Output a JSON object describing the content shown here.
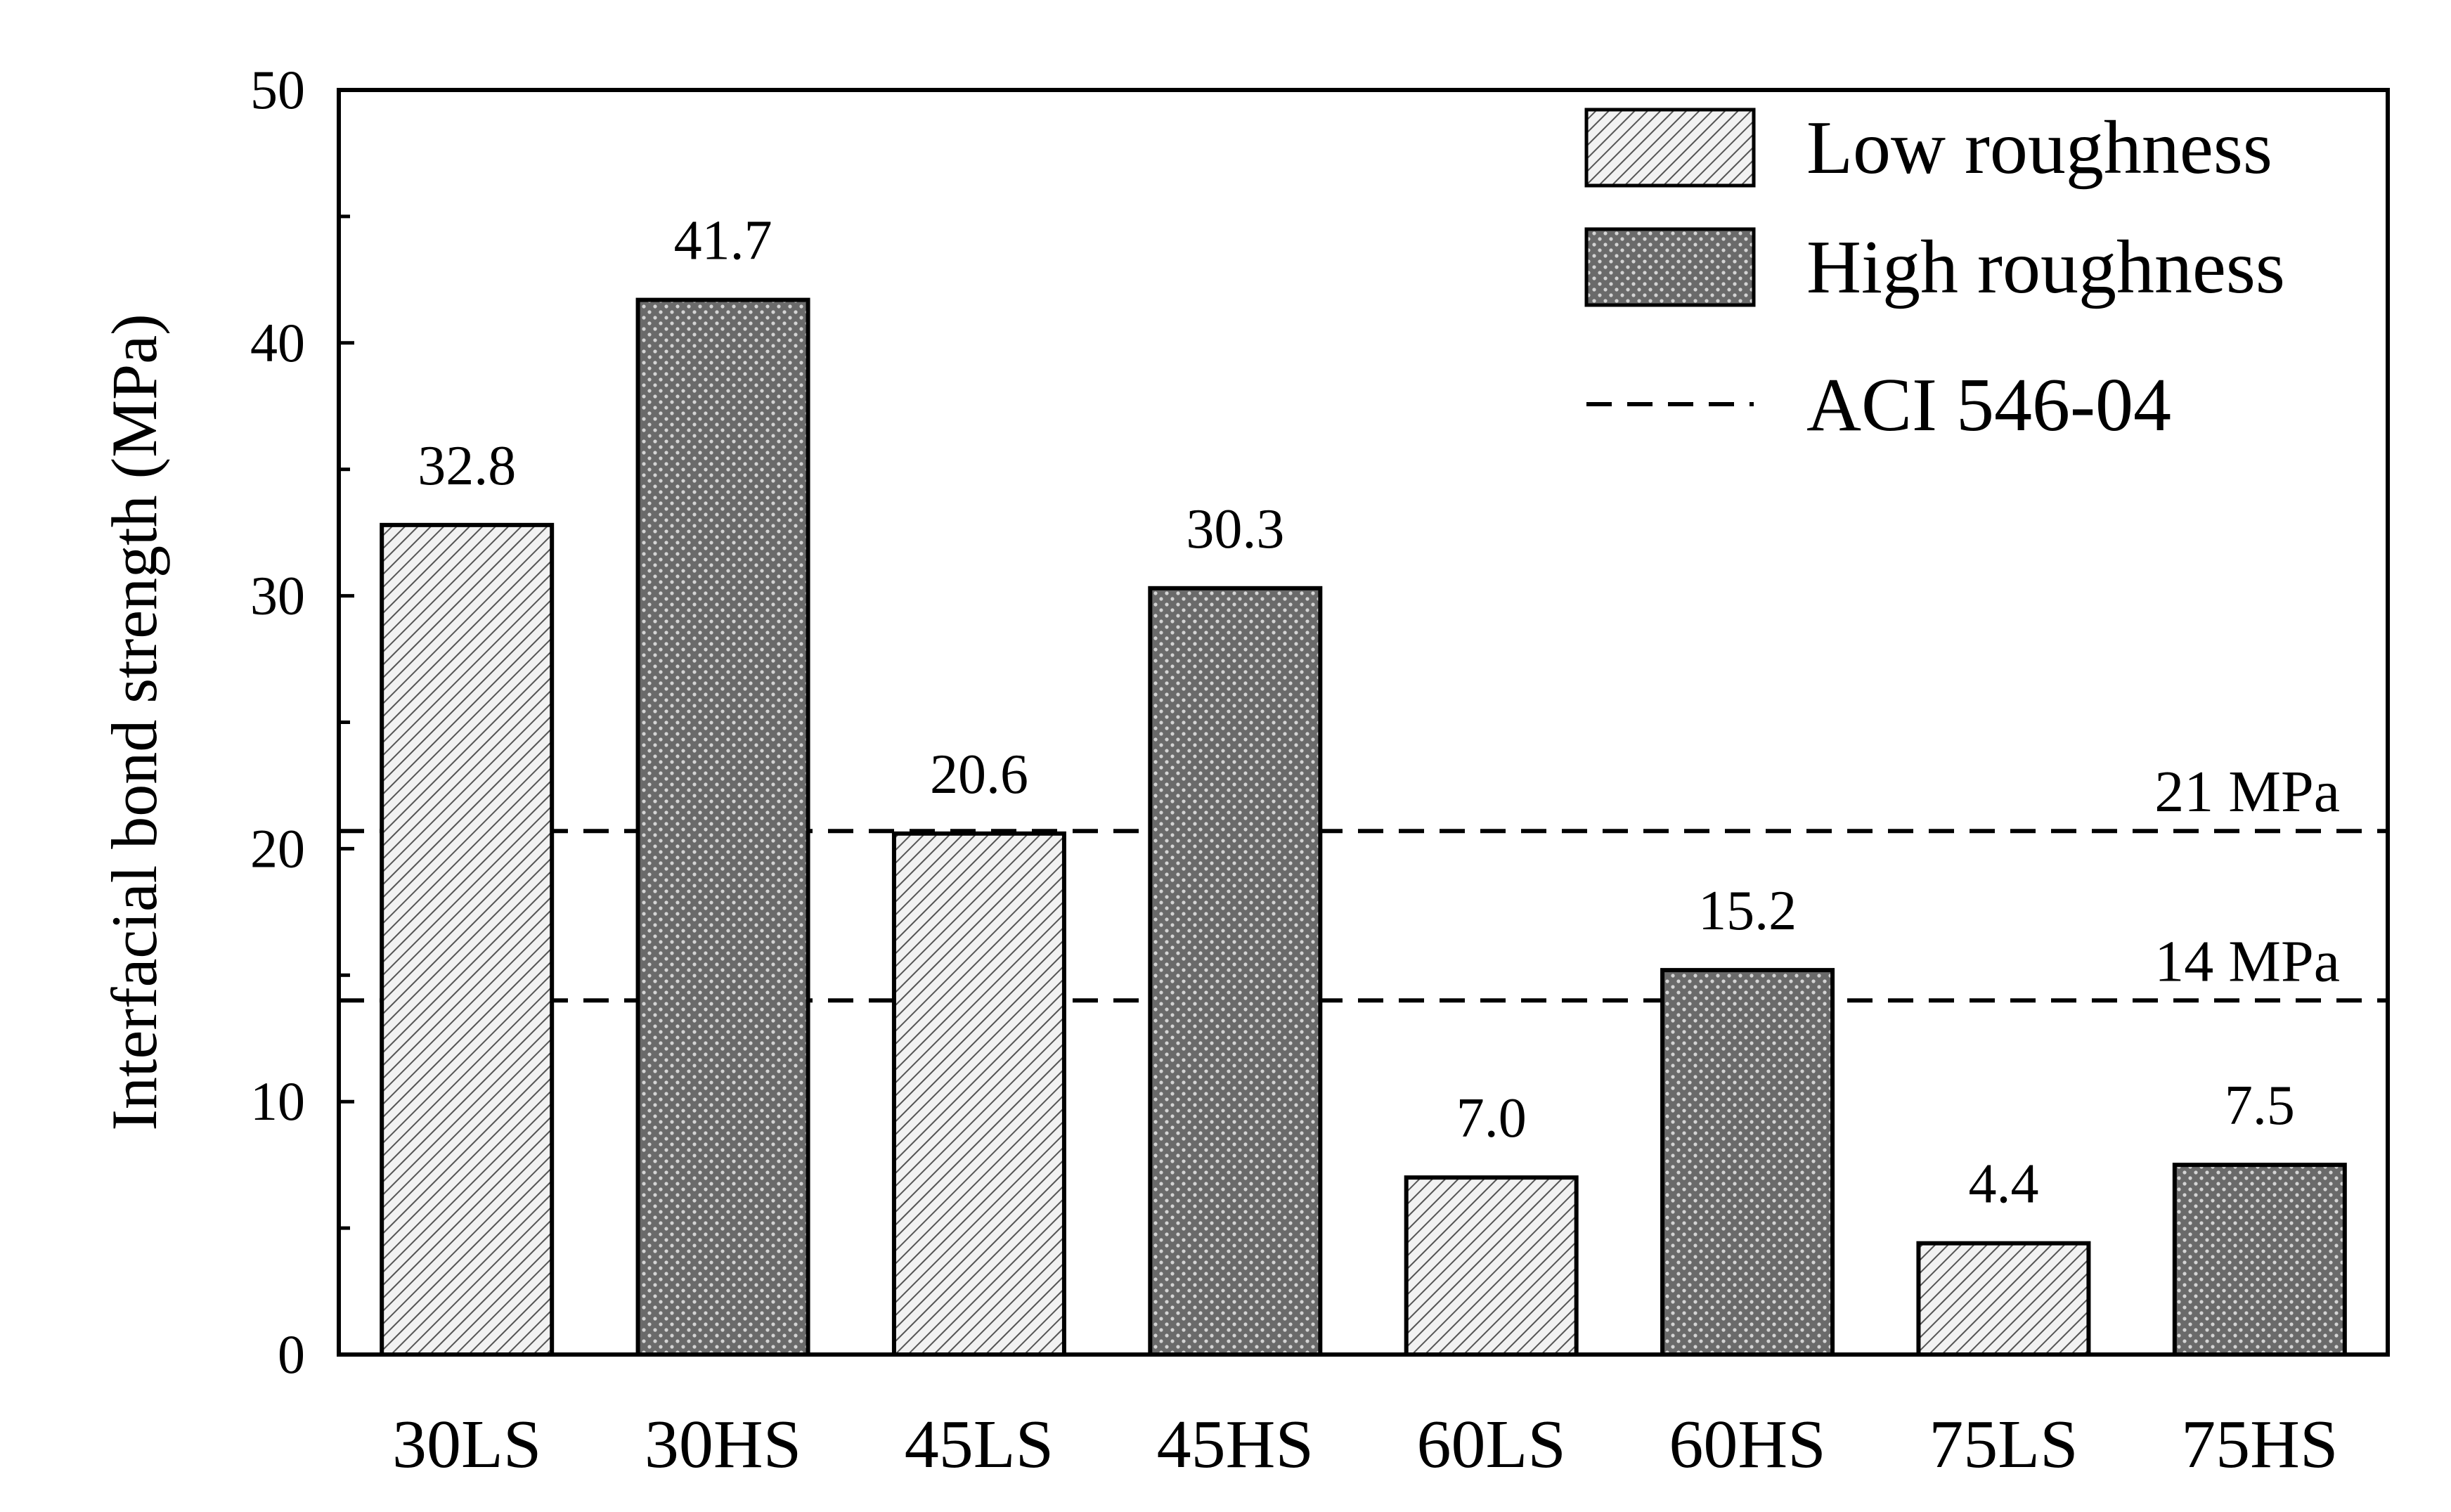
{
  "chart_data": {
    "type": "bar",
    "title": "",
    "xlabel": "",
    "ylabel": "Interfacial bond strength (MPa)",
    "ylim": [
      0,
      50
    ],
    "yticks": [
      0,
      10,
      20,
      30,
      40,
      50
    ],
    "grid": false,
    "legend_position": "top-right",
    "categories": [
      "30LS",
      "30HS",
      "45LS",
      "45HS",
      "60LS",
      "60HS",
      "75LS",
      "75HS"
    ],
    "values": [
      32.8,
      41.7,
      20.6,
      30.3,
      7.0,
      15.2,
      4.4,
      7.5
    ],
    "value_labels": [
      "32.8",
      "41.7",
      "20.6",
      "30.3",
      "7.0",
      "15.2",
      "4.4",
      "7.5"
    ],
    "groups": [
      "low",
      "high",
      "low",
      "high",
      "low",
      "high",
      "low",
      "high"
    ],
    "series": [
      {
        "key": "low",
        "name": "Low roughness",
        "pattern": "diagonal-hatch"
      },
      {
        "key": "high",
        "name": "High roughness",
        "pattern": "dotted-dark"
      }
    ],
    "reference_lines": [
      {
        "value": 20.7,
        "label": "21 MPa"
      },
      {
        "value": 14.0,
        "label": "14 MPa"
      }
    ],
    "reference_legend": "ACI 546-04",
    "colors": {
      "low_stripe": "#555555",
      "low_bg": "#f2f2f2",
      "high_bg": "#6a6a6a",
      "high_dot": "#d4d4d4",
      "ink": "#000000"
    }
  }
}
